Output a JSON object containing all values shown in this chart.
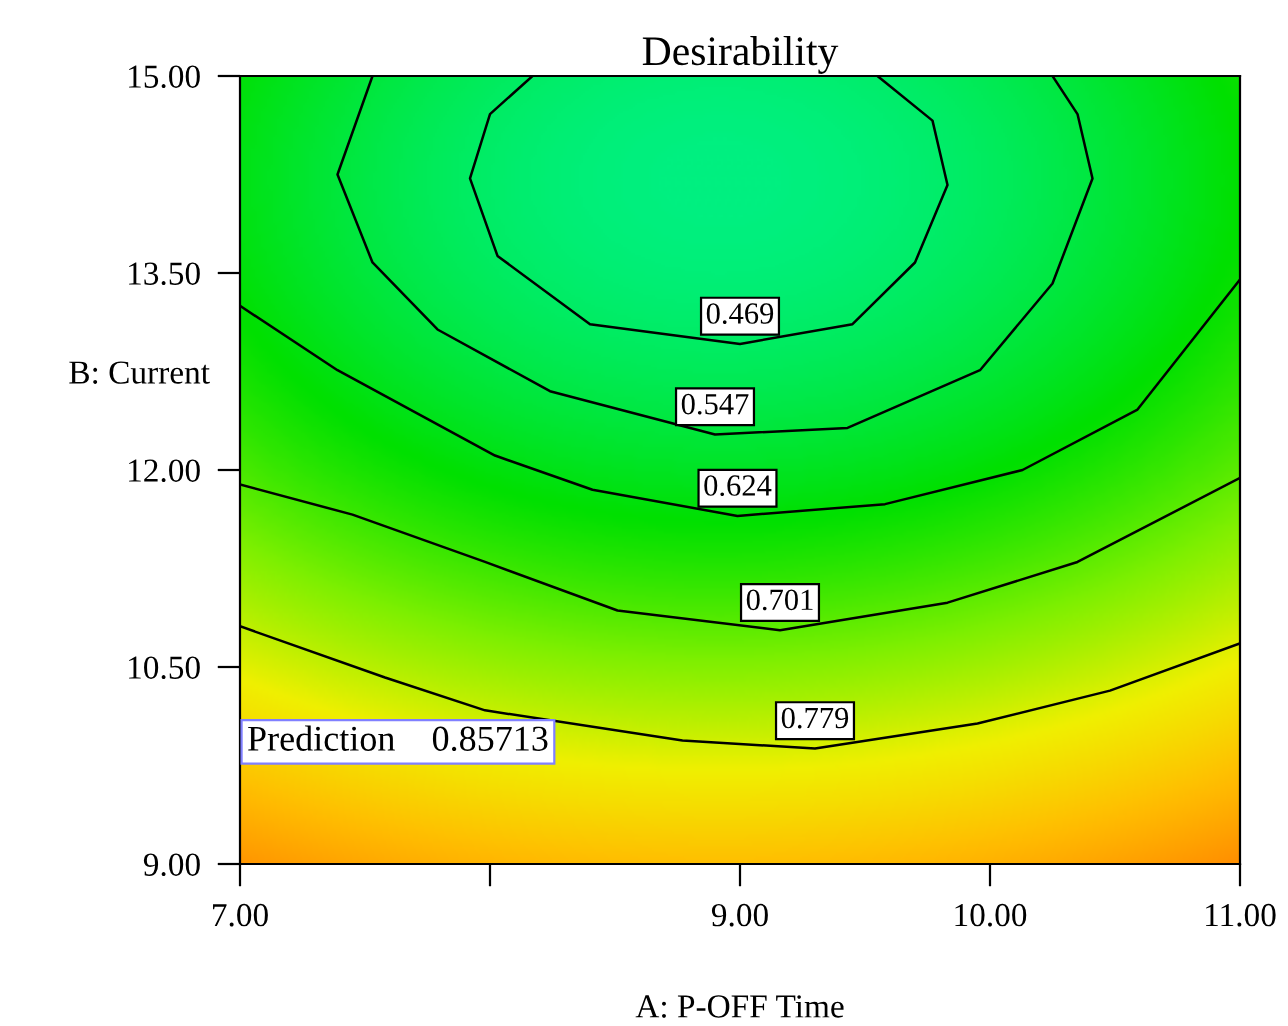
{
  "chart_data": {
    "type": "line",
    "title": "Desirability",
    "xlabel": "A: P-OFF Time",
    "ylabel": "B: Current",
    "xlim": [
      7,
      11
    ],
    "ylim": [
      9,
      15
    ],
    "xticks": [
      {
        "value": 7,
        "label": "7.00"
      },
      {
        "value": 8,
        "label": null
      },
      {
        "value": 9,
        "label": "9.00"
      },
      {
        "value": 10,
        "label": "10.00"
      },
      {
        "value": 11,
        "label": "11.00"
      }
    ],
    "yticks": [
      {
        "value": 9,
        "label": "9.00"
      },
      {
        "value": 10.5,
        "label": "10.50"
      },
      {
        "value": 12,
        "label": "12.00"
      },
      {
        "value": 13.5,
        "label": "13.50"
      },
      {
        "value": 15,
        "label": "15.00"
      }
    ],
    "grid": false,
    "legend": false,
    "marker": "none",
    "line_style": "solid",
    "series": [
      {
        "name": "0.469",
        "color": "#000000",
        "x": [
          8.17,
          8.0,
          7.92,
          8.03,
          8.4,
          9.0,
          9.45,
          9.7,
          9.83,
          9.77,
          9.55
        ],
        "values": [
          15.0,
          14.71,
          14.22,
          13.63,
          13.11,
          12.96,
          13.11,
          13.58,
          14.17,
          14.66,
          15.0
        ]
      },
      {
        "name": "0.547",
        "color": "#000000",
        "x": [
          7.53,
          7.39,
          7.53,
          7.79,
          8.24,
          8.9,
          9.43,
          9.96,
          10.25,
          10.41,
          10.35,
          10.25
        ],
        "values": [
          15.0,
          14.25,
          13.58,
          13.07,
          12.6,
          12.27,
          12.32,
          12.76,
          13.42,
          14.22,
          14.71,
          15.0
        ]
      },
      {
        "name": "0.624",
        "color": "#000000",
        "x": [
          7.0,
          7.39,
          8.02,
          8.41,
          8.99,
          9.58,
          10.13,
          10.59,
          11.0
        ],
        "values": [
          13.25,
          12.76,
          12.11,
          11.85,
          11.65,
          11.74,
          12.0,
          12.46,
          13.45
        ]
      },
      {
        "name": "0.701",
        "color": "#000000",
        "x": [
          7.0,
          7.45,
          7.98,
          8.51,
          9.16,
          9.83,
          10.35,
          11.0
        ],
        "values": [
          11.89,
          11.66,
          11.3,
          10.93,
          10.78,
          10.99,
          11.3,
          11.94
        ]
      },
      {
        "name": "0.779",
        "color": "#000000",
        "x": [
          7.0,
          7.58,
          7.98,
          8.77,
          9.3,
          9.95,
          10.48,
          11.0
        ],
        "values": [
          10.81,
          10.42,
          10.17,
          9.94,
          9.88,
          10.07,
          10.32,
          10.68
        ]
      }
    ],
    "annotations": [
      "Prediction    0.85713"
    ]
  }
}
